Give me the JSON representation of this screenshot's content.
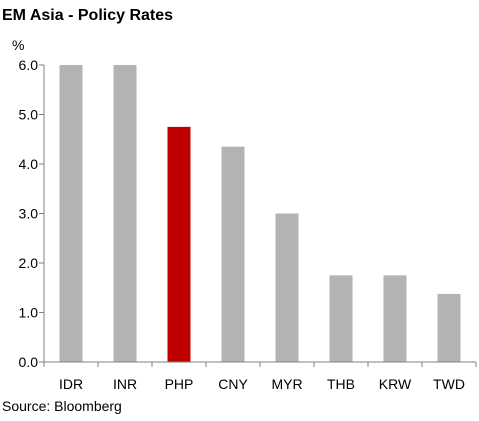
{
  "chart_data": {
    "type": "bar",
    "title": "EM Asia - Policy Rates",
    "ylabel": "%",
    "xlabel": "",
    "categories": [
      "IDR",
      "INR",
      "PHP",
      "CNY",
      "MYR",
      "THB",
      "KRW",
      "TWD"
    ],
    "values": [
      6.0,
      6.0,
      4.75,
      4.35,
      3.0,
      1.75,
      1.75,
      1.375
    ],
    "ylim": [
      0,
      6.0
    ],
    "yticks": [
      "0.0",
      "1.0",
      "2.0",
      "3.0",
      "4.0",
      "5.0",
      "6.0"
    ],
    "grid": false,
    "source": "Source: Bloomberg",
    "colors": {
      "default": "#b3b3b3",
      "highlight": "#c00000",
      "axis": "#808080"
    },
    "highlight_category": "PHP"
  }
}
